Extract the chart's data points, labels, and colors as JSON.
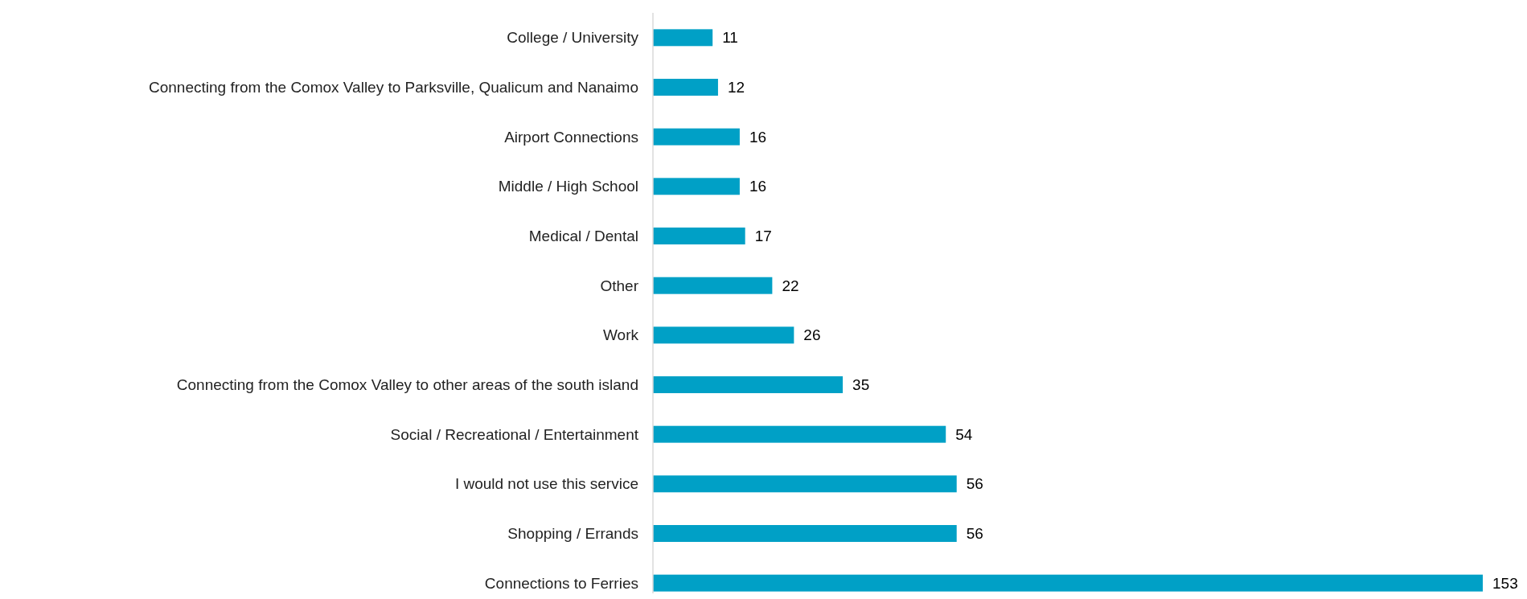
{
  "chart_data": {
    "type": "bar",
    "orientation": "horizontal",
    "categories": [
      "College / University",
      "Connecting from the Comox Valley to Parksville, Qualicum and Nanaimo",
      "Airport Connections",
      "Middle / High School",
      "Medical / Dental",
      "Other",
      "Work",
      "Connecting from the Comox Valley to other areas of the south island",
      "Social / Recreational / Entertainment",
      "I would not use this service",
      "Shopping / Errands",
      "Connections to Ferries"
    ],
    "values": [
      11,
      12,
      16,
      16,
      17,
      22,
      26,
      35,
      54,
      56,
      56,
      153
    ],
    "color": "#00a0c6",
    "data_labels": true
  }
}
